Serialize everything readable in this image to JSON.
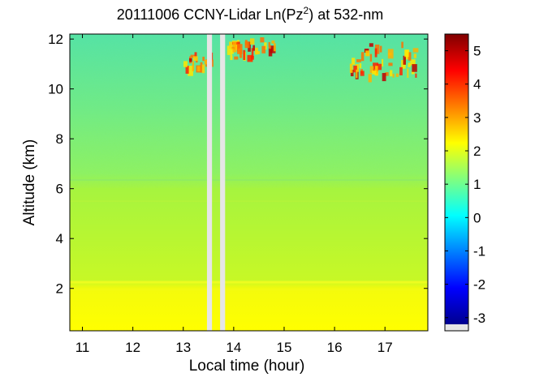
{
  "chart_data": {
    "type": "heatmap",
    "title_main": "20111006 CCNY-Lidar Ln(Pz",
    "title_sup": "2",
    "title_end": ") at 532-nm",
    "xlabel": "Local time (hour)",
    "ylabel": "Altitude (km)",
    "xlim": [
      10.75,
      17.85
    ],
    "ylim": [
      0.3,
      12.2
    ],
    "xticks": [
      "11",
      "12",
      "13",
      "14",
      "15",
      "16",
      "17"
    ],
    "yticks": [
      "2",
      "4",
      "6",
      "8",
      "10",
      "12"
    ],
    "colorbar": {
      "range": [
        -3.2,
        5.5
      ],
      "ticks": [
        "5",
        "4",
        "3",
        "2",
        "1",
        "0",
        "-1",
        "-2",
        "-3"
      ],
      "missing_color": "#e6e6e6"
    },
    "data_gaps_hours": [
      [
        13.47,
        13.57
      ],
      [
        13.73,
        13.83
      ]
    ],
    "grid": false,
    "cloud_layers": [
      {
        "time_range": [
          13.0,
          13.5
        ],
        "altitude_km": [
          10.9,
          11.5
        ],
        "ln_pz2_max": 4.0
      },
      {
        "time_range": [
          13.85,
          14.8
        ],
        "altitude_km": [
          11.3,
          12.1
        ],
        "ln_pz2_max": 4.0
      },
      {
        "time_range": [
          16.3,
          17.6
        ],
        "altitude_km": [
          10.6,
          11.9
        ],
        "ln_pz2_max": 5.0
      }
    ],
    "boundary_layer": {
      "altitude_km": [
        0.3,
        2.3
      ],
      "ln_pz2": 2.1
    },
    "free_troposphere": {
      "altitude_km": [
        2.3,
        6.3
      ],
      "ln_pz2": 1.5
    },
    "upper_levels": {
      "altitude_km": [
        6.3,
        12.2
      ],
      "ln_pz2": 0.8
    }
  }
}
